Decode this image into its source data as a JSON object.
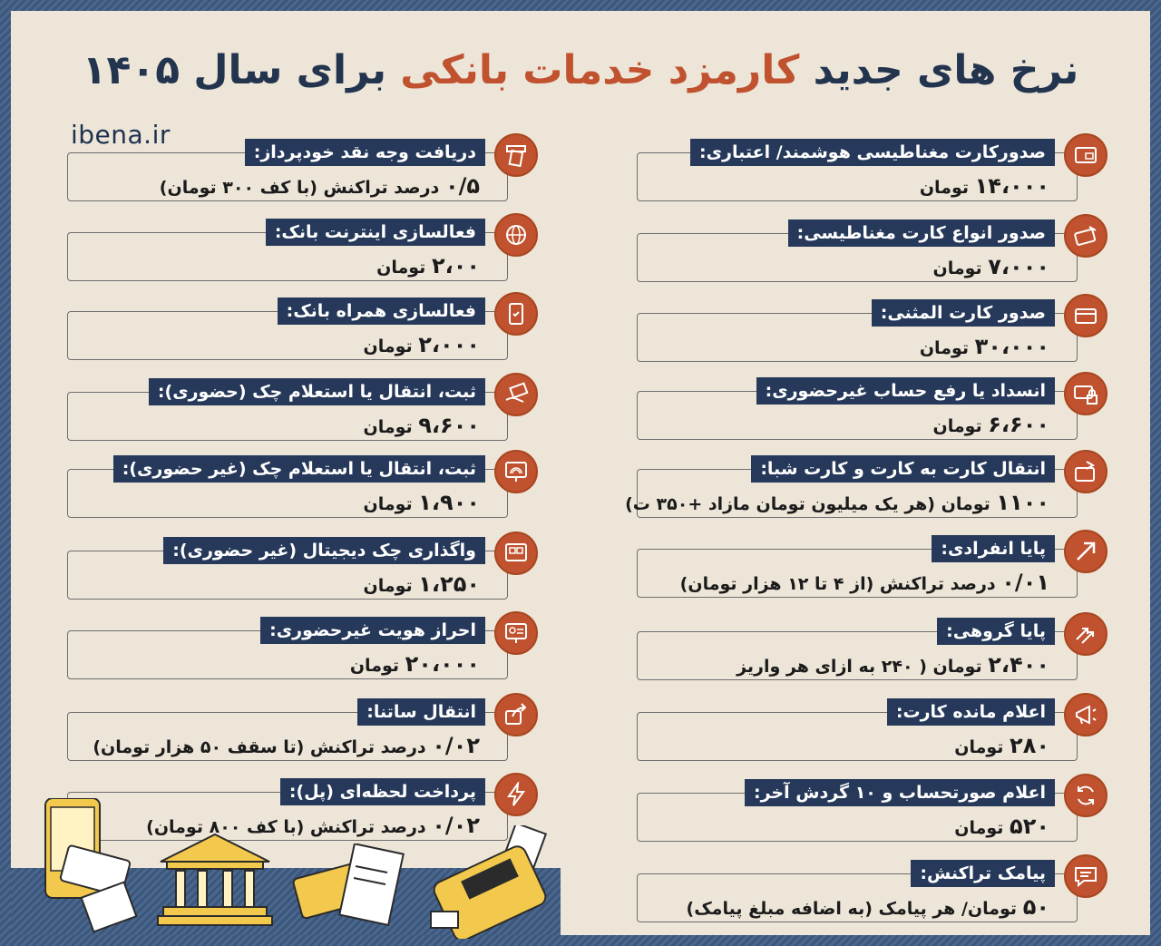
{
  "title": {
    "part1": "نرخ های جدید",
    "accent": "کارمزد خدمات بانکی",
    "part2": "برای سال ۱۴۰۵"
  },
  "logo": "ibena.ir",
  "colors": {
    "navy": "#26395a",
    "accent": "#c0522f",
    "background": "#ece5d8"
  },
  "right_column": [
    {
      "label": "صدورکارت مغناطیسی هوشمند/ اعتباری:",
      "value_num": "۱۴،۰۰۰",
      "value_text": "تومان",
      "icon": "card-icon"
    },
    {
      "label": "صدور انواع کارت مغناطیسی:",
      "value_num": "۷،۰۰۰",
      "value_text": "تومان",
      "icon": "card-swipe-icon"
    },
    {
      "label": "صدور کارت المثنی:",
      "value_num": "۳۰،۰۰۰",
      "value_text": "تومان",
      "icon": "credit-card-icon"
    },
    {
      "label": "انسداد یا رفع حساب غیرحضوری:",
      "value_num": "۶،۶۰۰",
      "value_text": "تومان",
      "icon": "card-lock-icon"
    },
    {
      "label": "انتقال کارت به کارت و کارت شبا:",
      "value_num": "۱۱۰۰",
      "value_text": "تومان (هر یک میلیون تومان مازاد +۳۵۰ ت)",
      "icon": "card-transfer-icon"
    },
    {
      "label": "پایا انفرادی:",
      "value_num": "۰/۰۱",
      "value_text": "درصد تراکنش (از ۴ تا ۱۲ هزار تومان)",
      "icon": "arrow-up-right-icon"
    },
    {
      "label": "پایا گروهی:",
      "value_num": "۲،۴۰۰",
      "value_text": "تومان ( ۲۴۰ به ازای هر واریز",
      "icon": "double-arrow-icon"
    },
    {
      "label": "اعلام مانده کارت:",
      "value_num": "۲۸۰",
      "value_text": "تومان",
      "icon": "megaphone-icon"
    },
    {
      "label": "اعلام صورتحساب و ۱۰ گردش آخر:",
      "value_num": "۵۲۰",
      "value_text": "تومان",
      "icon": "refresh-icon"
    },
    {
      "label": "پیامک تراکنش:",
      "value_num": "۵۰",
      "value_text": "تومان/ هر پیامک (به اضافه مبلغ پیامک)",
      "icon": "message-icon"
    }
  ],
  "left_column": [
    {
      "label": "دریافت وجه نقد خودپرداز:",
      "value_num": "۰/۵",
      "value_text": "درصد تراکنش (با کف ۳۰۰ تومان)",
      "icon": "atm-icon"
    },
    {
      "label": "فعالسازی اینترنت بانک:",
      "value_num": "۲،۰۰",
      "value_text": "تومان",
      "icon": "globe-icon"
    },
    {
      "label": "فعالسازی همراه بانک:",
      "value_num": "۲،۰۰۰",
      "value_text": "تومان",
      "icon": "mobile-icon"
    },
    {
      "label": "ثبت، انتقال یا استعلام چک (حضوری):",
      "value_num": "۹،۶۰۰",
      "value_text": "تومان",
      "icon": "cheque-hand-icon"
    },
    {
      "label": "ثبت، انتقال یا استعلام چک (غیر حضوری):",
      "value_num": "۱،۹۰۰",
      "value_text": "تومان",
      "icon": "fingerprint-icon"
    },
    {
      "label": "واگذاری چک دیجیتال (غیر حضوری):",
      "value_num": "۱،۲۵۰",
      "value_text": "تومان",
      "icon": "digital-cheque-icon"
    },
    {
      "label": "احراز هویت غیرحضوری:",
      "value_num": "۲۰،۰۰۰",
      "value_text": "تومان",
      "icon": "id-screen-icon"
    },
    {
      "label": "انتقال ساتنا:",
      "value_num": "۰/۰۲",
      "value_text": "درصد تراکنش (تا سقف ۵۰ هزار تومان)",
      "icon": "share-icon"
    },
    {
      "label": "پرداخت لحظه‌ای (پل):",
      "value_num": "۰/۰۲",
      "value_text": "درصد تراکنش (با کف ۸۰۰ تومان)",
      "icon": "lightning-icon"
    }
  ]
}
